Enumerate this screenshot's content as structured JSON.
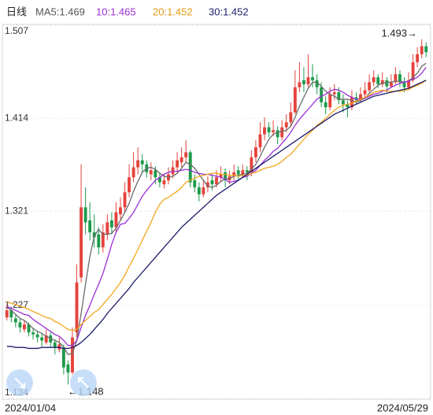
{
  "chart_data": {
    "type": "candlestick",
    "period": "日线",
    "categories": [
      "2024/01/04",
      null,
      null,
      null,
      null,
      null,
      null,
      null,
      null,
      null,
      null,
      null,
      null,
      null,
      null,
      null,
      null,
      null,
      null,
      null,
      null,
      null,
      null,
      null,
      null,
      null,
      null,
      null,
      null,
      null,
      null,
      null,
      null,
      null,
      null,
      null,
      null,
      null,
      null,
      null,
      null,
      null,
      null,
      null,
      null,
      null,
      null,
      null,
      null,
      null,
      null,
      null,
      null,
      null,
      null,
      null,
      null,
      null,
      null,
      null,
      null,
      null,
      null,
      null,
      null,
      null,
      null,
      null,
      null,
      null,
      null,
      null,
      null,
      null,
      null,
      null,
      null,
      null,
      null,
      null,
      null,
      null,
      null,
      null,
      null,
      null,
      null,
      null,
      null,
      null,
      null,
      null,
      null,
      null,
      null,
      null,
      "2024/05/29"
    ],
    "open": [
      1.215,
      1.222,
      1.214,
      1.21,
      1.203,
      1.208,
      1.2,
      1.198,
      1.195,
      1.19,
      1.197,
      1.19,
      1.183,
      1.185,
      1.168,
      1.16,
      1.2,
      1.255,
      1.325,
      1.312,
      1.3,
      1.298,
      1.285,
      1.298,
      1.312,
      1.305,
      1.318,
      1.325,
      1.34,
      1.355,
      1.365,
      1.372,
      1.368,
      1.358,
      1.362,
      1.355,
      1.348,
      1.352,
      1.358,
      1.365,
      1.37,
      1.375,
      1.38,
      1.352,
      1.345,
      1.338,
      1.345,
      1.352,
      1.348,
      1.355,
      1.36,
      1.352,
      1.356,
      1.362,
      1.358,
      1.362,
      1.36,
      1.375,
      1.385,
      1.398,
      1.405,
      1.4,
      1.402,
      1.395,
      1.405,
      1.41,
      1.42,
      1.445,
      1.452,
      1.448,
      1.455,
      1.452,
      1.445,
      1.43,
      1.425,
      1.438,
      1.44,
      1.432,
      1.428,
      1.425,
      1.435,
      1.432,
      1.438,
      1.442,
      1.45,
      1.455,
      1.448,
      1.452,
      1.446,
      1.45,
      1.458,
      1.45,
      1.445,
      1.452,
      1.47,
      1.478,
      1.486
    ],
    "high": [
      1.228,
      1.225,
      1.218,
      1.214,
      1.212,
      1.21,
      1.204,
      1.201,
      1.199,
      1.203,
      1.2,
      1.193,
      1.195,
      1.188,
      1.172,
      1.205,
      1.268,
      1.368,
      1.345,
      1.33,
      1.318,
      1.305,
      1.308,
      1.318,
      1.32,
      1.33,
      1.335,
      1.35,
      1.368,
      1.38,
      1.385,
      1.378,
      1.372,
      1.37,
      1.366,
      1.36,
      1.358,
      1.365,
      1.372,
      1.38,
      1.385,
      1.392,
      1.382,
      1.358,
      1.35,
      1.352,
      1.356,
      1.358,
      1.362,
      1.366,
      1.364,
      1.362,
      1.368,
      1.366,
      1.368,
      1.366,
      1.382,
      1.392,
      1.41,
      1.415,
      1.41,
      1.412,
      1.406,
      1.412,
      1.418,
      1.43,
      1.462,
      1.47,
      1.465,
      1.478,
      1.468,
      1.458,
      1.45,
      1.436,
      1.445,
      1.448,
      1.445,
      1.438,
      1.432,
      1.442,
      1.44,
      1.445,
      1.45,
      1.458,
      1.462,
      1.458,
      1.46,
      1.455,
      1.458,
      1.465,
      1.462,
      1.455,
      1.46,
      1.478,
      1.485,
      1.493,
      1.49
    ],
    "low": [
      1.212,
      1.21,
      1.205,
      1.2,
      1.2,
      1.196,
      1.193,
      1.19,
      1.186,
      1.188,
      1.185,
      1.178,
      1.18,
      1.158,
      1.148,
      1.158,
      1.195,
      1.25,
      1.298,
      1.292,
      1.285,
      1.278,
      1.28,
      1.292,
      1.298,
      1.3,
      1.312,
      1.32,
      1.335,
      1.35,
      1.358,
      1.36,
      1.355,
      1.352,
      1.348,
      1.345,
      1.344,
      1.348,
      1.354,
      1.36,
      1.365,
      1.37,
      1.345,
      1.34,
      1.331,
      1.335,
      1.34,
      1.342,
      1.345,
      1.35,
      1.345,
      1.348,
      1.352,
      1.352,
      1.354,
      1.352,
      1.356,
      1.37,
      1.38,
      1.392,
      1.395,
      1.396,
      1.388,
      1.392,
      1.4,
      1.405,
      1.418,
      1.44,
      1.44,
      1.445,
      1.445,
      1.438,
      1.425,
      1.418,
      1.422,
      1.432,
      1.428,
      1.42,
      1.415,
      1.422,
      1.428,
      1.43,
      1.435,
      1.44,
      1.446,
      1.444,
      1.445,
      1.44,
      1.444,
      1.448,
      1.445,
      1.44,
      1.442,
      1.45,
      1.465,
      1.474,
      1.475
    ],
    "close": [
      1.222,
      1.215,
      1.21,
      1.205,
      1.208,
      1.2,
      1.198,
      1.195,
      1.192,
      1.197,
      1.19,
      1.185,
      1.188,
      1.165,
      1.16,
      1.195,
      1.25,
      1.325,
      1.31,
      1.3,
      1.295,
      1.285,
      1.3,
      1.31,
      1.305,
      1.32,
      1.325,
      1.34,
      1.355,
      1.365,
      1.372,
      1.368,
      1.36,
      1.362,
      1.355,
      1.35,
      1.352,
      1.358,
      1.365,
      1.372,
      1.375,
      1.38,
      1.35,
      1.345,
      1.338,
      1.345,
      1.35,
      1.348,
      1.355,
      1.358,
      1.352,
      1.356,
      1.36,
      1.358,
      1.362,
      1.36,
      1.375,
      1.385,
      1.398,
      1.405,
      1.4,
      1.402,
      1.395,
      1.405,
      1.41,
      1.42,
      1.445,
      1.45,
      1.448,
      1.455,
      1.452,
      1.445,
      1.43,
      1.425,
      1.438,
      1.44,
      1.432,
      1.428,
      1.425,
      1.435,
      1.432,
      1.438,
      1.442,
      1.45,
      1.455,
      1.448,
      1.452,
      1.446,
      1.45,
      1.458,
      1.45,
      1.445,
      1.452,
      1.47,
      1.478,
      1.486,
      1.48
    ],
    "up_color": "#e5433c",
    "down_color": "#1e9a4b",
    "series": [
      {
        "name": "MA5:1.469",
        "color": "#6b6b6b",
        "values": [
          1.225,
          1.222,
          1.218,
          1.214,
          1.212,
          1.208,
          1.204,
          1.201,
          1.199,
          1.196,
          1.194,
          1.192,
          1.19,
          1.185,
          1.178,
          1.179,
          1.192,
          1.219,
          1.248,
          1.276,
          1.296,
          1.303,
          1.298,
          1.298,
          1.299,
          1.304,
          1.312,
          1.32,
          1.329,
          1.341,
          1.351,
          1.36,
          1.364,
          1.365,
          1.363,
          1.359,
          1.356,
          1.355,
          1.356,
          1.359,
          1.364,
          1.37,
          1.368,
          1.364,
          1.358,
          1.352,
          1.346,
          1.345,
          1.347,
          1.351,
          1.353,
          1.354,
          1.356,
          1.357,
          1.358,
          1.359,
          1.363,
          1.368,
          1.376,
          1.385,
          1.393,
          1.398,
          1.4,
          1.401,
          1.402,
          1.406,
          1.415,
          1.426,
          1.435,
          1.444,
          1.45,
          1.45,
          1.446,
          1.441,
          1.438,
          1.436,
          1.433,
          1.433,
          1.433,
          1.432,
          1.43,
          1.432,
          1.434,
          1.439,
          1.443,
          1.447,
          1.449,
          1.45,
          1.45,
          1.451,
          1.451,
          1.45,
          1.451,
          1.455,
          1.459,
          1.466,
          1.469
        ]
      },
      {
        "name": "10:1.465",
        "color": "#9b2fd6",
        "values": [
          1.226,
          1.224,
          1.222,
          1.22,
          1.218,
          1.217,
          1.213,
          1.21,
          1.207,
          1.204,
          1.201,
          1.198,
          1.196,
          1.192,
          1.187,
          1.187,
          1.192,
          1.205,
          1.217,
          1.227,
          1.238,
          1.248,
          1.259,
          1.273,
          1.288,
          1.3,
          1.308,
          1.309,
          1.314,
          1.32,
          1.328,
          1.336,
          1.342,
          1.347,
          1.352,
          1.355,
          1.358,
          1.36,
          1.361,
          1.361,
          1.362,
          1.363,
          1.362,
          1.36,
          1.359,
          1.358,
          1.358,
          1.357,
          1.356,
          1.355,
          1.353,
          1.35,
          1.351,
          1.352,
          1.355,
          1.356,
          1.359,
          1.362,
          1.367,
          1.372,
          1.376,
          1.381,
          1.384,
          1.389,
          1.394,
          1.4,
          1.407,
          1.413,
          1.418,
          1.423,
          1.428,
          1.433,
          1.436,
          1.438,
          1.441,
          1.443,
          1.442,
          1.44,
          1.437,
          1.435,
          1.433,
          1.433,
          1.434,
          1.436,
          1.438,
          1.439,
          1.441,
          1.442,
          1.445,
          1.447,
          1.449,
          1.45,
          1.451,
          1.453,
          1.455,
          1.459,
          1.465
        ]
      },
      {
        "name": "20:1.452",
        "color": "#f2a61c",
        "values": [
          1.231,
          1.229,
          1.228,
          1.226,
          1.225,
          1.223,
          1.221,
          1.219,
          1.217,
          1.215,
          1.214,
          1.211,
          1.209,
          1.206,
          1.203,
          1.202,
          1.203,
          1.208,
          1.212,
          1.216,
          1.22,
          1.223,
          1.228,
          1.233,
          1.238,
          1.244,
          1.25,
          1.257,
          1.266,
          1.274,
          1.283,
          1.292,
          1.301,
          1.31,
          1.32,
          1.328,
          1.333,
          1.335,
          1.338,
          1.341,
          1.345,
          1.35,
          1.352,
          1.354,
          1.356,
          1.357,
          1.358,
          1.359,
          1.359,
          1.358,
          1.358,
          1.357,
          1.357,
          1.356,
          1.357,
          1.357,
          1.359,
          1.36,
          1.362,
          1.364,
          1.365,
          1.366,
          1.368,
          1.371,
          1.375,
          1.378,
          1.383,
          1.388,
          1.393,
          1.398,
          1.402,
          1.407,
          1.41,
          1.414,
          1.418,
          1.422,
          1.425,
          1.427,
          1.428,
          1.429,
          1.431,
          1.433,
          1.435,
          1.437,
          1.44,
          1.441,
          1.442,
          1.441,
          1.441,
          1.441,
          1.441,
          1.442,
          1.443,
          1.445,
          1.447,
          1.449,
          1.452
        ]
      },
      {
        "name": "30:1.452",
        "color": "#1c1c6b",
        "values": [
          1.186,
          1.186,
          1.185,
          1.185,
          1.185,
          1.184,
          1.184,
          1.184,
          1.185,
          1.185,
          1.185,
          1.185,
          1.185,
          1.184,
          1.184,
          1.185,
          1.187,
          1.19,
          1.194,
          1.198,
          1.203,
          1.208,
          1.213,
          1.219,
          1.224,
          1.229,
          1.234,
          1.239,
          1.244,
          1.25,
          1.255,
          1.26,
          1.265,
          1.27,
          1.275,
          1.28,
          1.285,
          1.29,
          1.295,
          1.3,
          1.305,
          1.309,
          1.313,
          1.317,
          1.321,
          1.325,
          1.329,
          1.333,
          1.337,
          1.34,
          1.343,
          1.346,
          1.349,
          1.352,
          1.355,
          1.358,
          1.361,
          1.364,
          1.367,
          1.37,
          1.373,
          1.376,
          1.379,
          1.382,
          1.385,
          1.388,
          1.391,
          1.394,
          1.397,
          1.4,
          1.403,
          1.406,
          1.409,
          1.412,
          1.415,
          1.418,
          1.42,
          1.422,
          1.424,
          1.426,
          1.428,
          1.43,
          1.432,
          1.434,
          1.436,
          1.437,
          1.438,
          1.439,
          1.44,
          1.441,
          1.442,
          1.443,
          1.444,
          1.446,
          1.448,
          1.45,
          1.452
        ]
      }
    ],
    "ylim": [
      1.134,
      1.507
    ],
    "yticks": [
      1.507,
      1.414,
      1.321,
      1.227,
      1.134
    ],
    "grid": true,
    "annotations": [
      "1.493→",
      "←1.148"
    ]
  }
}
